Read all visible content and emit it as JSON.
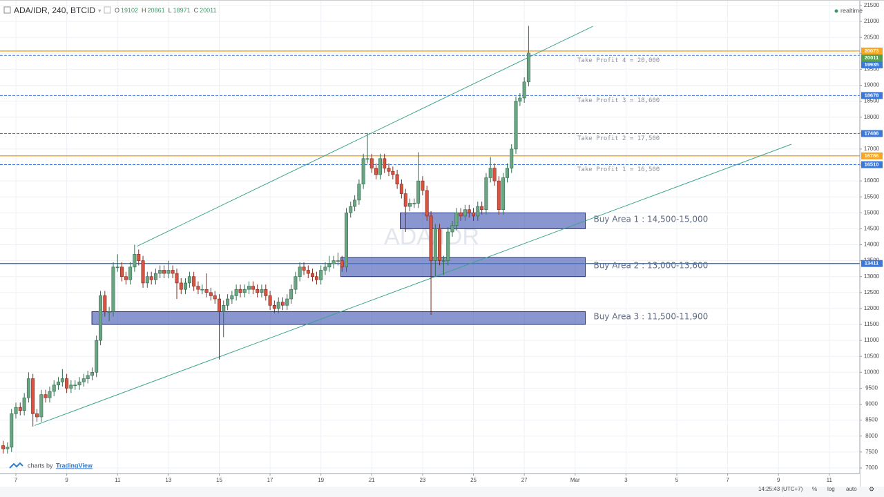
{
  "chart_data": {
    "type": "candlestick",
    "title": "ADA/IDR, 240, BTCID",
    "watermark": "ADA/IDR",
    "realtime": "realtime",
    "ohlc_letters": [
      "O",
      "H",
      "L",
      "C"
    ],
    "up_color": "#6ba583",
    "down_color": "#d75442",
    "grid": true,
    "xlim": [
      6.375,
      40.2
    ],
    "ylim": [
      6825,
      21673
    ],
    "xticks": [
      7,
      9,
      11,
      13,
      15,
      17,
      19,
      21,
      23,
      25,
      27,
      {
        "value": 29,
        "label": "Mar"
      },
      {
        "value": 31,
        "label": "3"
      },
      {
        "value": 33,
        "label": "5"
      },
      {
        "value": 35,
        "label": "7"
      },
      {
        "value": 37,
        "label": "9"
      },
      {
        "value": 39,
        "label": "11"
      }
    ],
    "yticks": [
      7000,
      7500,
      8000,
      8500,
      9000,
      9500,
      10000,
      10500,
      11000,
      11500,
      12000,
      12500,
      13000,
      13500,
      14000,
      14500,
      15000,
      15500,
      16000,
      16500,
      17000,
      17500,
      18000,
      18500,
      19000,
      19500,
      20000,
      20500,
      21000,
      21500
    ],
    "x": [
      6.5,
      6.67,
      6.83,
      7,
      7.17,
      7.33,
      7.5,
      7.67,
      7.83,
      8,
      8.17,
      8.33,
      8.5,
      8.67,
      8.83,
      9,
      9.17,
      9.33,
      9.5,
      9.67,
      9.83,
      10,
      10.17,
      10.33,
      10.5,
      10.67,
      10.83,
      11,
      11.17,
      11.33,
      11.5,
      11.67,
      11.83,
      12,
      12.17,
      12.33,
      12.5,
      12.67,
      12.83,
      13,
      13.17,
      13.33,
      13.5,
      13.67,
      13.83,
      14,
      14.17,
      14.33,
      14.5,
      14.67,
      14.83,
      15,
      15.17,
      15.33,
      15.5,
      15.67,
      15.83,
      16,
      16.17,
      16.33,
      16.5,
      16.67,
      16.83,
      17,
      17.17,
      17.33,
      17.5,
      17.67,
      17.83,
      18,
      18.17,
      18.33,
      18.5,
      18.67,
      18.83,
      19,
      19.17,
      19.33,
      19.5,
      19.67,
      19.83,
      20,
      20.17,
      20.33,
      20.5,
      20.67,
      20.83,
      21,
      21.17,
      21.33,
      21.5,
      21.67,
      21.83,
      22,
      22.17,
      22.33,
      22.5,
      22.67,
      22.83,
      23,
      23.17,
      23.33,
      23.5,
      23.67,
      23.83,
      24,
      24.17,
      24.33,
      24.5,
      24.67,
      24.83,
      25,
      25.17,
      25.33,
      25.5,
      25.67,
      25.83,
      26,
      26.17,
      26.33,
      26.5,
      26.67,
      26.83,
      27,
      27.17
    ],
    "candles": [
      [
        7700,
        7850,
        7450,
        7600
      ],
      [
        7600,
        7800,
        7450,
        7650
      ],
      [
        7650,
        8850,
        7500,
        8700
      ],
      [
        8700,
        9050,
        8550,
        8900
      ],
      [
        8900,
        9050,
        8650,
        8800
      ],
      [
        8800,
        9350,
        8650,
        9200
      ],
      [
        9200,
        10000,
        9050,
        9800
      ],
      [
        9800,
        9950,
        8300,
        8700
      ],
      [
        8700,
        8850,
        8450,
        8600
      ],
      [
        8600,
        9450,
        8450,
        9300
      ],
      [
        9300,
        9450,
        9050,
        9200
      ],
      [
        9200,
        9550,
        9050,
        9400
      ],
      [
        9400,
        9750,
        9250,
        9600
      ],
      [
        9600,
        9850,
        9450,
        9700
      ],
      [
        9700,
        10100,
        9550,
        9800
      ],
      [
        9800,
        9950,
        9350,
        9500
      ],
      [
        9500,
        9750,
        9350,
        9600
      ],
      [
        9600,
        9750,
        9450,
        9600
      ],
      [
        9600,
        9850,
        9450,
        9700
      ],
      [
        9700,
        9950,
        9550,
        9800
      ],
      [
        9800,
        10050,
        9650,
        9900
      ],
      [
        9900,
        10150,
        9750,
        10000
      ],
      [
        10000,
        11150,
        9850,
        11000
      ],
      [
        11000,
        12550,
        10850,
        12400
      ],
      [
        12400,
        12550,
        11750,
        11900
      ],
      [
        11900,
        12050,
        11600,
        11900
      ],
      [
        11900,
        13450,
        11750,
        13300
      ],
      [
        13300,
        13700,
        13150,
        13300
      ],
      [
        13300,
        13450,
        12850,
        13000
      ],
      [
        13000,
        13150,
        12750,
        12900
      ],
      [
        12900,
        13450,
        12750,
        13300
      ],
      [
        13300,
        14000,
        13150,
        13700
      ],
      [
        13700,
        13850,
        13350,
        13500
      ],
      [
        13500,
        13650,
        12650,
        12800
      ],
      [
        12800,
        13150,
        12650,
        13000
      ],
      [
        13000,
        13150,
        12750,
        12900
      ],
      [
        12900,
        13250,
        12750,
        13100
      ],
      [
        13100,
        13350,
        12950,
        13200
      ],
      [
        13200,
        13350,
        12950,
        13100
      ],
      [
        13100,
        13500,
        12950,
        13200
      ],
      [
        13200,
        13350,
        12950,
        13100
      ],
      [
        13100,
        13250,
        12300,
        12800
      ],
      [
        12800,
        12950,
        12450,
        12600
      ],
      [
        12600,
        12950,
        12450,
        12800
      ],
      [
        12800,
        13150,
        12650,
        13000
      ],
      [
        13000,
        13150,
        12550,
        12700
      ],
      [
        12700,
        12850,
        12450,
        12600
      ],
      [
        12600,
        12750,
        12450,
        12600
      ],
      [
        12600,
        13100,
        12350,
        12500
      ],
      [
        12500,
        12650,
        12250,
        12400
      ],
      [
        12400,
        12550,
        12150,
        12300
      ],
      [
        12300,
        12450,
        10400,
        11900
      ],
      [
        11900,
        12250,
        11100,
        12100
      ],
      [
        12100,
        12450,
        11950,
        12300
      ],
      [
        12300,
        12550,
        12150,
        12400
      ],
      [
        12400,
        12750,
        12250,
        12600
      ],
      [
        12600,
        12750,
        12350,
        12500
      ],
      [
        12500,
        12750,
        12350,
        12600
      ],
      [
        12600,
        12850,
        12450,
        12700
      ],
      [
        12700,
        12850,
        12450,
        12600
      ],
      [
        12600,
        12750,
        12350,
        12500
      ],
      [
        12500,
        12750,
        12350,
        12600
      ],
      [
        12600,
        12750,
        12250,
        12400
      ],
      [
        12400,
        12550,
        11950,
        12100
      ],
      [
        12100,
        12250,
        11850,
        12000
      ],
      [
        12000,
        12350,
        11850,
        12200
      ],
      [
        12200,
        12350,
        11950,
        12100
      ],
      [
        12100,
        12450,
        11950,
        12300
      ],
      [
        12300,
        12750,
        12150,
        12600
      ],
      [
        12600,
        13150,
        12450,
        13000
      ],
      [
        13000,
        13450,
        12850,
        13300
      ],
      [
        13300,
        13450,
        13050,
        13200
      ],
      [
        13200,
        13350,
        12950,
        13100
      ],
      [
        13100,
        13250,
        12850,
        13000
      ],
      [
        13000,
        13150,
        12750,
        12900
      ],
      [
        12900,
        13350,
        12750,
        13200
      ],
      [
        13200,
        13450,
        13050,
        13300
      ],
      [
        13300,
        13650,
        13150,
        13400
      ],
      [
        13400,
        13650,
        13250,
        13500
      ],
      [
        13500,
        13750,
        13350,
        13500
      ],
      [
        13500,
        13650,
        13150,
        13300
      ],
      [
        13300,
        15150,
        13150,
        15000
      ],
      [
        15000,
        15350,
        14850,
        15200
      ],
      [
        15200,
        15550,
        15050,
        15400
      ],
      [
        15400,
        16050,
        15250,
        15900
      ],
      [
        15900,
        16850,
        15750,
        16700
      ],
      [
        16700,
        17500,
        16550,
        16700
      ],
      [
        16700,
        16850,
        16250,
        16400
      ],
      [
        16400,
        16550,
        16050,
        16200
      ],
      [
        16200,
        16850,
        16050,
        16700
      ],
      [
        16700,
        16850,
        16250,
        16400
      ],
      [
        16400,
        16550,
        16150,
        16300
      ],
      [
        16300,
        16450,
        16050,
        16200
      ],
      [
        16200,
        16350,
        15750,
        15900
      ],
      [
        15900,
        16050,
        15450,
        15600
      ],
      [
        15600,
        15750,
        14400,
        15200
      ],
      [
        15200,
        15450,
        15050,
        15300
      ],
      [
        15300,
        15450,
        15150,
        15300
      ],
      [
        15300,
        16900,
        15150,
        16000
      ],
      [
        16000,
        16150,
        15550,
        15700
      ],
      [
        15700,
        15850,
        14750,
        14900
      ],
      [
        14900,
        15050,
        11800,
        13500
      ],
      [
        13500,
        14650,
        13000,
        14500
      ],
      [
        14500,
        14650,
        13350,
        13500
      ],
      [
        13500,
        13650,
        13050,
        13500
      ],
      [
        13500,
        14550,
        13350,
        14400
      ],
      [
        14400,
        14750,
        14250,
        14600
      ],
      [
        14600,
        15150,
        14450,
        15000
      ],
      [
        15000,
        15150,
        14750,
        14900
      ],
      [
        14900,
        15250,
        14750,
        15100
      ],
      [
        15100,
        15250,
        14850,
        15000
      ],
      [
        15000,
        15150,
        14750,
        14900
      ],
      [
        14900,
        15350,
        14750,
        15200
      ],
      [
        15200,
        15350,
        14950,
        15100
      ],
      [
        15100,
        16250,
        14950,
        16100
      ],
      [
        16100,
        16750,
        15950,
        16400
      ],
      [
        16400,
        16550,
        15850,
        16000
      ],
      [
        16000,
        16150,
        14950,
        15100
      ],
      [
        15100,
        16250,
        14950,
        16100
      ],
      [
        16100,
        16550,
        15950,
        16400
      ],
      [
        16400,
        17150,
        16250,
        17000
      ],
      [
        17000,
        18650,
        16850,
        18500
      ],
      [
        18500,
        18750,
        18350,
        18600
      ],
      [
        18600,
        19250,
        18450,
        19102
      ],
      [
        19102,
        20861,
        18971,
        20011
      ]
    ],
    "last_color": "#53a04f",
    "levels": [
      {
        "value": 20073,
        "color": "#f6a623",
        "style": "solid"
      },
      {
        "value": 19935,
        "color": "#3c78d8",
        "style": "dashed",
        "note": "Take Profit 4 = 20,000"
      },
      {
        "value": 18678,
        "color": "#3c78d8",
        "style": "dashed",
        "note": "Take Profit 3 = 18,600"
      },
      {
        "value": 17486,
        "color": "#3c78d8",
        "style": "dashed",
        "note": "Take Profit 2 = 17,500"
      },
      {
        "value": 16786,
        "color": "#f6a623",
        "style": "solid"
      },
      {
        "value": 16510,
        "color": "#3c78d8",
        "style": "dashed",
        "note": "Take Profit 1 = 16,500"
      },
      {
        "value": 13411,
        "color": "#3c78d8",
        "style": "solid"
      }
    ],
    "zones": [
      {
        "label": "Buy Area 1 : 14,500-15,000",
        "low": 14500,
        "high": 15000,
        "x0": 22.12,
        "x1": 29.4
      },
      {
        "label": "Buy Area 2 : 13,000-13,600",
        "low": 13000,
        "high": 13600,
        "x0": 19.78,
        "x1": 29.4
      },
      {
        "label": "Buy Area 3 : 11,500-11,900",
        "low": 11500,
        "high": 11900,
        "x0": 9.99,
        "x1": 29.4
      }
    ],
    "trendlines": [
      {
        "x": [
          11.76,
          29.7
        ],
        "y": [
          13950,
          20850
        ]
      },
      {
        "x": [
          7.73,
          37.51
        ],
        "y": [
          8330,
          17150
        ]
      }
    ]
  },
  "ui": {
    "credit": "charts by",
    "brand": "TradingView",
    "clock": "14:25:43 (UTC+7)",
    "buttons": [
      "%",
      "log",
      "auto"
    ]
  }
}
